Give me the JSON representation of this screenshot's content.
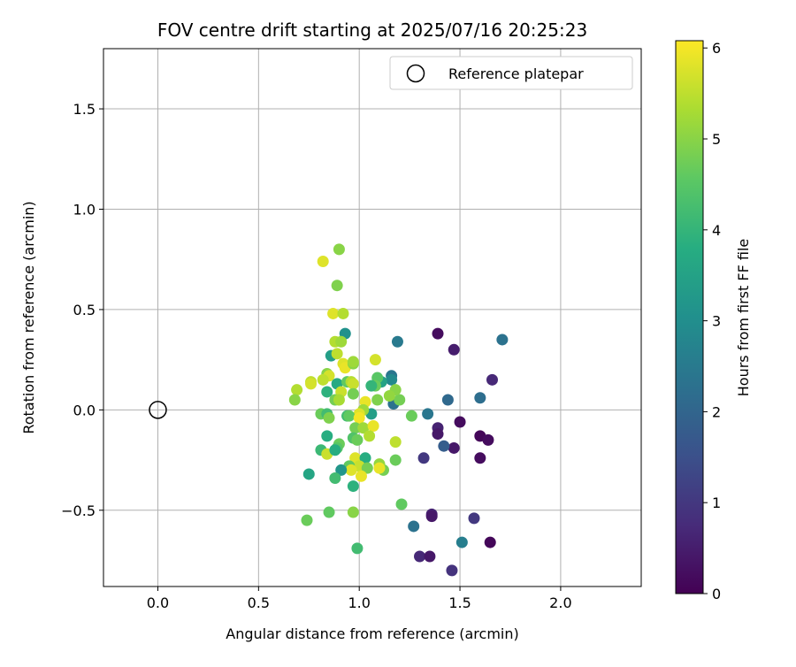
{
  "chart_data": {
    "type": "scatter",
    "title": "FOV centre drift starting at 2025/07/16 20:25:23",
    "xlabel": "Angular distance from reference (arcmin)",
    "ylabel": "Rotation from reference (arcmin)",
    "xlim": [
      -0.27,
      2.4
    ],
    "ylim": [
      -0.88,
      1.8
    ],
    "grid": true,
    "x_ticks": [
      0.0,
      0.5,
      1.0,
      1.5,
      2.0
    ],
    "x_tick_labels": [
      "0.0",
      "0.5",
      "1.0",
      "1.5",
      "2.0"
    ],
    "y_ticks": [
      -0.5,
      0.0,
      0.5,
      1.0,
      1.5
    ],
    "y_tick_labels": [
      "−0.5",
      "0.0",
      "0.5",
      "1.0",
      "1.5"
    ],
    "legend": {
      "position": "top-right",
      "entries": [
        "Reference platepar"
      ]
    },
    "reference_point": {
      "x": 0.0,
      "y": 0.0
    },
    "colorbar": {
      "label": "Hours from first FF file",
      "range": [
        0,
        6.08
      ],
      "ticks": [
        0,
        1,
        2,
        3,
        4,
        5,
        6
      ],
      "tick_labels": [
        "0",
        "1",
        "2",
        "3",
        "4",
        "5",
        "6"
      ],
      "colormap": "viridis"
    },
    "points": [
      {
        "x": 1.39,
        "y": 0.38,
        "h": 0.2
      },
      {
        "x": 1.47,
        "y": 0.3,
        "h": 0.5
      },
      {
        "x": 1.66,
        "y": 0.15,
        "h": 0.7
      },
      {
        "x": 1.71,
        "y": 0.35,
        "h": 2.3
      },
      {
        "x": 1.6,
        "y": 0.06,
        "h": 2.2
      },
      {
        "x": 1.5,
        "y": -0.06,
        "h": 0.2
      },
      {
        "x": 1.39,
        "y": -0.09,
        "h": 0.6
      },
      {
        "x": 1.39,
        "y": -0.12,
        "h": 0.4
      },
      {
        "x": 1.47,
        "y": -0.19,
        "h": 0.4
      },
      {
        "x": 1.6,
        "y": -0.13,
        "h": 0.1
      },
      {
        "x": 1.64,
        "y": -0.15,
        "h": 0.2
      },
      {
        "x": 1.6,
        "y": -0.24,
        "h": 0.2
      },
      {
        "x": 1.32,
        "y": -0.24,
        "h": 1.0
      },
      {
        "x": 1.42,
        "y": -0.18,
        "h": 1.8
      },
      {
        "x": 1.44,
        "y": 0.05,
        "h": 2.1
      },
      {
        "x": 1.34,
        "y": -0.02,
        "h": 2.4
      },
      {
        "x": 1.36,
        "y": -0.52,
        "h": 0.6
      },
      {
        "x": 1.36,
        "y": -0.53,
        "h": 0.4
      },
      {
        "x": 1.57,
        "y": -0.54,
        "h": 1.0
      },
      {
        "x": 1.65,
        "y": -0.66,
        "h": 0.1
      },
      {
        "x": 1.51,
        "y": -0.66,
        "h": 2.6
      },
      {
        "x": 1.27,
        "y": -0.58,
        "h": 2.3
      },
      {
        "x": 1.3,
        "y": -0.73,
        "h": 0.7
      },
      {
        "x": 1.35,
        "y": -0.73,
        "h": 0.4
      },
      {
        "x": 1.46,
        "y": -0.8,
        "h": 0.9
      },
      {
        "x": 1.19,
        "y": 0.34,
        "h": 2.5
      },
      {
        "x": 1.16,
        "y": 0.17,
        "h": 2.4
      },
      {
        "x": 1.16,
        "y": 0.15,
        "h": 2.9
      },
      {
        "x": 1.17,
        "y": 0.03,
        "h": 2.3
      },
      {
        "x": 1.11,
        "y": 0.14,
        "h": 3.5
      },
      {
        "x": 1.09,
        "y": 0.16,
        "h": 4.5
      },
      {
        "x": 1.08,
        "y": 0.12,
        "h": 4.7
      },
      {
        "x": 1.06,
        "y": 0.12,
        "h": 4.0
      },
      {
        "x": 1.2,
        "y": 0.05,
        "h": 4.8
      },
      {
        "x": 1.18,
        "y": 0.1,
        "h": 5.0
      },
      {
        "x": 1.15,
        "y": 0.07,
        "h": 5.1
      },
      {
        "x": 1.26,
        "y": -0.03,
        "h": 4.7
      },
      {
        "x": 1.06,
        "y": -0.02,
        "h": 3.4
      },
      {
        "x": 1.09,
        "y": 0.05,
        "h": 4.9
      },
      {
        "x": 1.18,
        "y": -0.16,
        "h": 5.5
      },
      {
        "x": 1.18,
        "y": -0.25,
        "h": 4.7
      },
      {
        "x": 1.12,
        "y": -0.3,
        "h": 4.8
      },
      {
        "x": 1.1,
        "y": -0.27,
        "h": 5.1
      },
      {
        "x": 1.1,
        "y": -0.29,
        "h": 5.9
      },
      {
        "x": 1.21,
        "y": -0.47,
        "h": 4.6
      },
      {
        "x": 1.08,
        "y": 0.25,
        "h": 5.7
      },
      {
        "x": 0.93,
        "y": 0.38,
        "h": 3.1
      },
      {
        "x": 0.9,
        "y": 0.8,
        "h": 5.0
      },
      {
        "x": 0.82,
        "y": 0.74,
        "h": 5.8
      },
      {
        "x": 0.89,
        "y": 0.62,
        "h": 4.9
      },
      {
        "x": 0.87,
        "y": 0.48,
        "h": 5.8
      },
      {
        "x": 0.92,
        "y": 0.48,
        "h": 5.4
      },
      {
        "x": 0.88,
        "y": 0.34,
        "h": 5.4
      },
      {
        "x": 0.91,
        "y": 0.34,
        "h": 5.2
      },
      {
        "x": 0.86,
        "y": 0.27,
        "h": 3.4
      },
      {
        "x": 0.89,
        "y": 0.28,
        "h": 5.5
      },
      {
        "x": 0.92,
        "y": 0.23,
        "h": 5.8
      },
      {
        "x": 0.93,
        "y": 0.21,
        "h": 5.9
      },
      {
        "x": 0.97,
        "y": 0.23,
        "h": 5.0
      },
      {
        "x": 0.97,
        "y": 0.24,
        "h": 5.2
      },
      {
        "x": 0.84,
        "y": 0.18,
        "h": 5.0
      },
      {
        "x": 0.85,
        "y": 0.17,
        "h": 5.7
      },
      {
        "x": 0.82,
        "y": 0.15,
        "h": 5.5
      },
      {
        "x": 0.76,
        "y": 0.14,
        "h": 5.5
      },
      {
        "x": 0.76,
        "y": 0.13,
        "h": 5.7
      },
      {
        "x": 0.69,
        "y": 0.1,
        "h": 5.4
      },
      {
        "x": 0.68,
        "y": 0.05,
        "h": 5.0
      },
      {
        "x": 0.89,
        "y": 0.13,
        "h": 3.7
      },
      {
        "x": 0.94,
        "y": 0.14,
        "h": 4.6
      },
      {
        "x": 0.96,
        "y": 0.14,
        "h": 5.4
      },
      {
        "x": 0.97,
        "y": 0.13,
        "h": 5.6
      },
      {
        "x": 0.84,
        "y": 0.09,
        "h": 3.9
      },
      {
        "x": 0.91,
        "y": 0.09,
        "h": 5.6
      },
      {
        "x": 0.97,
        "y": 0.08,
        "h": 4.8
      },
      {
        "x": 0.88,
        "y": 0.05,
        "h": 4.8
      },
      {
        "x": 0.9,
        "y": 0.05,
        "h": 5.3
      },
      {
        "x": 1.03,
        "y": 0.04,
        "h": 5.9
      },
      {
        "x": 1.02,
        "y": 0.0,
        "h": 5.2
      },
      {
        "x": 1.0,
        "y": -0.02,
        "h": 5.8
      },
      {
        "x": 0.81,
        "y": -0.02,
        "h": 4.7
      },
      {
        "x": 0.84,
        "y": -0.02,
        "h": 4.2
      },
      {
        "x": 0.85,
        "y": -0.04,
        "h": 4.9
      },
      {
        "x": 0.94,
        "y": -0.03,
        "h": 4.2
      },
      {
        "x": 0.95,
        "y": -0.03,
        "h": 4.6
      },
      {
        "x": 1.0,
        "y": -0.04,
        "h": 6.0
      },
      {
        "x": 0.98,
        "y": -0.09,
        "h": 4.8
      },
      {
        "x": 1.02,
        "y": -0.09,
        "h": 5.2
      },
      {
        "x": 1.07,
        "y": -0.08,
        "h": 5.9
      },
      {
        "x": 1.05,
        "y": -0.13,
        "h": 5.4
      },
      {
        "x": 0.84,
        "y": -0.13,
        "h": 3.8
      },
      {
        "x": 0.97,
        "y": -0.14,
        "h": 4.4
      },
      {
        "x": 0.99,
        "y": -0.15,
        "h": 4.7
      },
      {
        "x": 0.9,
        "y": -0.17,
        "h": 4.7
      },
      {
        "x": 0.89,
        "y": -0.19,
        "h": 4.5
      },
      {
        "x": 0.81,
        "y": -0.2,
        "h": 4.1
      },
      {
        "x": 0.84,
        "y": -0.22,
        "h": 5.6
      },
      {
        "x": 0.88,
        "y": -0.2,
        "h": 3.8
      },
      {
        "x": 0.98,
        "y": -0.24,
        "h": 5.8
      },
      {
        "x": 1.03,
        "y": -0.24,
        "h": 3.8
      },
      {
        "x": 1.0,
        "y": -0.28,
        "h": 5.6
      },
      {
        "x": 0.95,
        "y": -0.28,
        "h": 4.6
      },
      {
        "x": 0.96,
        "y": -0.3,
        "h": 5.8
      },
      {
        "x": 0.91,
        "y": -0.3,
        "h": 3.2
      },
      {
        "x": 1.04,
        "y": -0.29,
        "h": 4.8
      },
      {
        "x": 1.01,
        "y": -0.33,
        "h": 5.9
      },
      {
        "x": 0.88,
        "y": -0.34,
        "h": 4.2
      },
      {
        "x": 0.75,
        "y": -0.32,
        "h": 3.6
      },
      {
        "x": 0.97,
        "y": -0.38,
        "h": 3.9
      },
      {
        "x": 0.74,
        "y": -0.55,
        "h": 4.7
      },
      {
        "x": 0.85,
        "y": -0.51,
        "h": 4.6
      },
      {
        "x": 0.97,
        "y": -0.51,
        "h": 5.0
      },
      {
        "x": 0.99,
        "y": -0.69,
        "h": 4.2
      }
    ]
  }
}
